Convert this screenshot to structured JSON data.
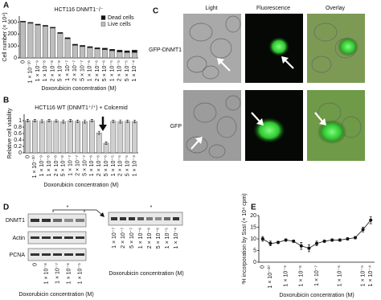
{
  "panel_labels": [
    "A",
    "B",
    "C",
    "D",
    "E"
  ],
  "chart_data": [
    {
      "type": "bar",
      "stacked": true,
      "title": "HCT116 DNMT1⁻/⁻",
      "ylabel": "Cell number (× 10⁴)",
      "xlabel": "Doxorubicin concentration (M)",
      "categories": [
        "0",
        "1 × 10⁻¹⁰",
        "1 × 10⁻⁹",
        "1 × 10⁻⁸",
        "2 × 10⁻⁸",
        "5 × 10⁻⁸",
        "1 × 10⁻⁷",
        "2 × 10⁻⁷",
        "5 × 10⁻⁷",
        "1 × 10⁻⁶",
        "2 × 10⁻⁶",
        "5 × 10⁻⁶",
        "1 × 10⁻⁵",
        "2 × 10⁻⁵",
        "5 × 10⁻⁵",
        "1 × 10⁻⁴"
      ],
      "series": [
        {
          "name": "Dead cells",
          "color": "#111111",
          "values": [
            8,
            8,
            8,
            8,
            8,
            8,
            10,
            10,
            10,
            10,
            10,
            12,
            12,
            15,
            15,
            20
          ]
        },
        {
          "name": "Live cells",
          "color": "#bdbdbd",
          "values": [
            300,
            290,
            275,
            265,
            250,
            205,
            160,
            105,
            95,
            85,
            75,
            70,
            60,
            50,
            45,
            45
          ]
        }
      ],
      "ylim": [
        0,
        350
      ],
      "yticks": [
        0,
        100,
        200,
        300
      ],
      "legend": "top-right"
    },
    {
      "type": "bar",
      "title": "HCT116 WT (DNMT1⁺/⁺) + Colcemid",
      "ylabel": "Relative cell viability",
      "xlabel": "Doxorubicin concentration (M)",
      "categories": [
        "0",
        "1 × 10⁻¹⁰",
        "1 × 10⁻⁹",
        "1 × 10⁻⁸",
        "2 × 10⁻⁸",
        "5 × 10⁻⁸",
        "1 × 10⁻⁷",
        "2 × 10⁻⁷",
        "5 × 10⁻⁷",
        "1 × 10⁻⁶",
        "2 × 10⁻⁶",
        "5 × 10⁻⁶",
        "1 × 10⁻⁵",
        "2 × 10⁻⁵",
        "5 × 10⁻⁵",
        "1 × 10⁻⁴"
      ],
      "series": [
        {
          "name": "Relative cell viability",
          "color": "#cfcfcf",
          "values": [
            1,
            1,
            0.98,
            1,
            0.99,
            0.97,
            1,
            0.98,
            0.97,
            1,
            0.62,
            0.3,
            0.98,
            0.97,
            0.98,
            0.97
          ],
          "errors": [
            0.04,
            0.04,
            0.05,
            0.04,
            0.04,
            0.05,
            0.04,
            0.04,
            0.05,
            0.04,
            0.05,
            0.04,
            0.04,
            0.05,
            0.04,
            0.04
          ]
        }
      ],
      "ylim": [
        0,
        1.2
      ],
      "yticks": [
        0,
        0.2,
        0.4,
        0.6,
        0.8,
        1
      ]
    },
    {
      "type": "line",
      "ylabel": "³H incorporation by SssI (× 10⁴ cpm)",
      "xlabel": "Doxorubicin concentration (M)",
      "categories": [
        "0",
        "1 × 10⁻¹⁰",
        null,
        "1 × 10⁻⁹",
        null,
        "1 × 10⁻⁸",
        null,
        "1 × 10⁻⁷",
        null,
        null,
        "1 × 10⁻⁶",
        null,
        null,
        "1 × 10⁻⁵",
        "1 × 10⁻⁴"
      ],
      "series": [
        {
          "name": "³H incorporation",
          "color": "#111111",
          "values": [
            10,
            8,
            8.5,
            9.5,
            9,
            7,
            6,
            8,
            9,
            9.5,
            9.5,
            10,
            10.5,
            14,
            18
          ],
          "errors": [
            1,
            1,
            0.5,
            0.5,
            0.5,
            1.5,
            1.5,
            1,
            0.5,
            0.5,
            0.5,
            0.5,
            0.5,
            1,
            1.5
          ]
        }
      ],
      "ylim": [
        0,
        20
      ],
      "yticks": [
        0,
        5,
        10,
        15,
        20
      ]
    }
  ],
  "microscopy": {
    "columns": [
      "Light",
      "Fluorescence",
      "Overlay"
    ],
    "rows": [
      "GFP-DNMT1",
      "GFP"
    ]
  },
  "blot": {
    "rows": [
      "DNMT1",
      "Actin",
      "PCNA"
    ],
    "star": "*",
    "left_lanes": [
      "0",
      "1 × 10⁻⁸",
      "1 × 10⁻⁷",
      "1 × 10⁻⁶",
      "1 × 10⁻⁵"
    ],
    "right_lanes": [
      "1 × 10⁻⁷",
      "2 × 10⁻⁷",
      "5 × 10⁻⁷",
      "1 × 10⁻⁶",
      "2 × 10⁻⁶",
      "5 × 10⁻⁶",
      "1 × 10⁻⁵",
      "1 × 10⁻⁴"
    ],
    "xlabel": "Doxorubicin concentration (M)"
  }
}
